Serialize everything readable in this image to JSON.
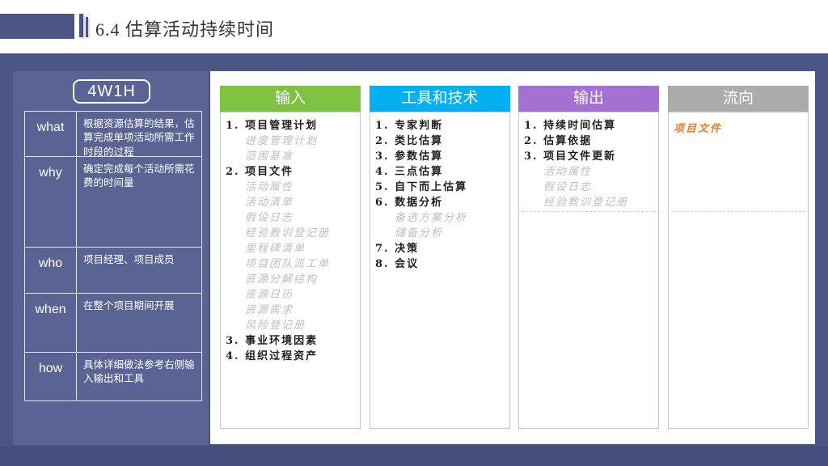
{
  "slide": {
    "title": "6.4 估算活动持续时间"
  },
  "panel_4w1h": {
    "badge": "4W1H",
    "rows": [
      {
        "label": "what",
        "desc": "根据资源估算的结果，估算完成单项活动所需工作时段的过程"
      },
      {
        "label": "why",
        "desc": "确定完成每个活动所需花费的时间量"
      },
      {
        "label": "who",
        "desc": "项目经理、项目成员"
      },
      {
        "label": "when",
        "desc": "在整个项目期间开展"
      },
      {
        "label": "how",
        "desc": "具体详细做法参考右侧输入输出和工具"
      }
    ]
  },
  "columns": {
    "input": {
      "header": "输入",
      "header_color": "#7FC242",
      "items": [
        {
          "text": "1. 项目管理计划",
          "level": "main"
        },
        {
          "text": "进度管理计划",
          "level": "sub"
        },
        {
          "text": "范围基准",
          "level": "sub"
        },
        {
          "text": "2. 项目文件",
          "level": "main"
        },
        {
          "text": "活动属性",
          "level": "sub"
        },
        {
          "text": "活动清单",
          "level": "sub"
        },
        {
          "text": "假设日志",
          "level": "sub"
        },
        {
          "text": "经验教训登记册",
          "level": "sub"
        },
        {
          "text": "里程碑清单",
          "level": "sub"
        },
        {
          "text": "项目团队派工单",
          "level": "sub"
        },
        {
          "text": "资源分解结构",
          "level": "sub"
        },
        {
          "text": "资源日历",
          "level": "sub"
        },
        {
          "text": "资源需求",
          "level": "sub"
        },
        {
          "text": "风险登记册",
          "level": "sub"
        },
        {
          "text": "3. 事业环境因素",
          "level": "main"
        },
        {
          "text": "4. 组织过程资产",
          "level": "main"
        }
      ]
    },
    "tools": {
      "header": "工具和技术",
      "header_color": "#00B0F0",
      "items": [
        {
          "text": "1. 专家判断",
          "level": "main"
        },
        {
          "text": "2. 类比估算",
          "level": "main"
        },
        {
          "text": "3. 参数估算",
          "level": "main"
        },
        {
          "text": "4. 三点估算",
          "level": "main"
        },
        {
          "text": "5. 自下而上估算",
          "level": "main"
        },
        {
          "text": "6. 数据分析",
          "level": "main"
        },
        {
          "text": "备选方案分析",
          "level": "sub"
        },
        {
          "text": "储备分析",
          "level": "sub"
        },
        {
          "text": "7. 决策",
          "level": "main"
        },
        {
          "text": "8. 会议",
          "level": "main"
        }
      ]
    },
    "output": {
      "header": "输出",
      "header_color": "#A470D4",
      "items": [
        {
          "text": "1. 持续时间估算",
          "level": "main"
        },
        {
          "text": "2. 估算依据",
          "level": "main"
        },
        {
          "text": "3. 项目文件更新",
          "level": "main"
        },
        {
          "text": "活动属性",
          "level": "sub"
        },
        {
          "text": "假设日志",
          "level": "sub"
        },
        {
          "text": "经验教训登记册",
          "level": "sub"
        }
      ]
    },
    "flow": {
      "header": "流向",
      "header_color": "#ABABAB",
      "items": [
        {
          "text": "项目文件",
          "level": "flow"
        }
      ]
    }
  },
  "colors": {
    "slide_background": "#4A5585",
    "left_panel_background": "#5A6494",
    "footer_strip": "#454F7D",
    "main_item_text": "#1F1F1F",
    "sub_item_text": "#BFBFBF",
    "flow_item_text": "#ED7D31"
  }
}
